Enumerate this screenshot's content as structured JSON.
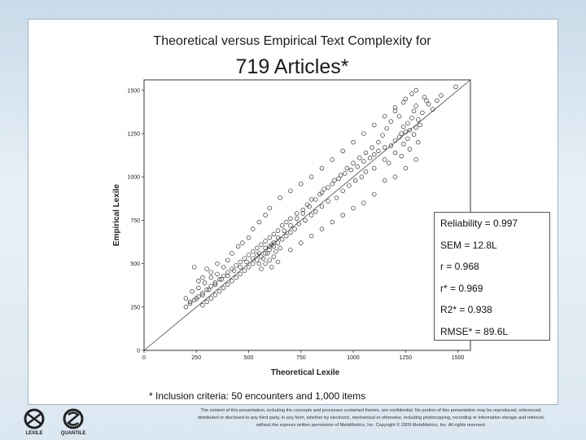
{
  "chart_data": {
    "type": "scatter",
    "title": "Theoretical versus Empirical Text Complexity for",
    "subtitle": "719 Articles*",
    "xlabel": "Theoretical Lexile",
    "ylabel": "Empirical Lexile",
    "xlim": [
      0,
      1560
    ],
    "ylim": [
      0,
      1560
    ],
    "xticks": [
      "0",
      "250",
      "500",
      "750",
      "1000",
      "1250",
      "1500"
    ],
    "yticks": [
      "0",
      "250",
      "500",
      "750",
      "1000",
      "1250",
      "1500"
    ],
    "reference_line": "y = x",
    "grid": false,
    "points": [
      [
        1490,
        1520
      ],
      [
        1350,
        1440
      ],
      [
        1300,
        1410
      ],
      [
        1290,
        1380
      ],
      [
        1330,
        1370
      ],
      [
        1280,
        1340
      ],
      [
        1310,
        1330
      ],
      [
        1260,
        1310
      ],
      [
        1320,
        1300
      ],
      [
        1240,
        1290
      ],
      [
        1300,
        1285
      ],
      [
        1270,
        1270
      ],
      [
        1250,
        1260
      ],
      [
        1230,
        1250
      ],
      [
        1290,
        1245
      ],
      [
        1220,
        1230
      ],
      [
        1260,
        1220
      ],
      [
        1200,
        1210
      ],
      [
        1310,
        1200
      ],
      [
        1240,
        1190
      ],
      [
        1180,
        1180
      ],
      [
        1150,
        1170
      ],
      [
        1270,
        1160
      ],
      [
        1120,
        1150
      ],
      [
        1200,
        1140
      ],
      [
        1100,
        1130
      ],
      [
        1230,
        1120
      ],
      [
        1080,
        1110
      ],
      [
        1150,
        1100
      ],
      [
        1050,
        1090
      ],
      [
        1170,
        1080
      ],
      [
        1020,
        1060
      ],
      [
        1100,
        1050
      ],
      [
        990,
        1040
      ],
      [
        1060,
        1030
      ],
      [
        960,
        1020
      ],
      [
        1040,
        1000
      ],
      [
        930,
        990
      ],
      [
        1010,
        980
      ],
      [
        900,
        960
      ],
      [
        980,
        950
      ],
      [
        860,
        930
      ],
      [
        950,
        920
      ],
      [
        840,
        900
      ],
      [
        920,
        880
      ],
      [
        800,
        870
      ],
      [
        880,
        860
      ],
      [
        780,
        840
      ],
      [
        850,
        830
      ],
      [
        760,
        810
      ],
      [
        820,
        800
      ],
      [
        730,
        790
      ],
      [
        800,
        780
      ],
      [
        700,
        760
      ],
      [
        770,
        750
      ],
      [
        680,
        740
      ],
      [
        740,
        730
      ],
      [
        660,
        720
      ],
      [
        720,
        700
      ],
      [
        640,
        690
      ],
      [
        700,
        680
      ],
      [
        620,
        670
      ],
      [
        680,
        660
      ],
      [
        600,
        650
      ],
      [
        660,
        640
      ],
      [
        580,
        630
      ],
      [
        640,
        620
      ],
      [
        560,
        610
      ],
      [
        620,
        600
      ],
      [
        540,
        590
      ],
      [
        600,
        580
      ],
      [
        520,
        570
      ],
      [
        580,
        560
      ],
      [
        500,
        550
      ],
      [
        560,
        540
      ],
      [
        480,
        530
      ],
      [
        540,
        520
      ],
      [
        460,
        510
      ],
      [
        520,
        500
      ],
      [
        440,
        490
      ],
      [
        500,
        480
      ],
      [
        420,
        470
      ],
      [
        480,
        460
      ],
      [
        400,
        450
      ],
      [
        460,
        440
      ],
      [
        380,
        430
      ],
      [
        440,
        420
      ],
      [
        360,
        410
      ],
      [
        420,
        400
      ],
      [
        340,
        390
      ],
      [
        400,
        380
      ],
      [
        320,
        370
      ],
      [
        380,
        360
      ],
      [
        300,
        350
      ],
      [
        360,
        340
      ],
      [
        280,
        330
      ],
      [
        340,
        320
      ],
      [
        260,
        310
      ],
      [
        320,
        300
      ],
      [
        240,
        290
      ],
      [
        300,
        280
      ],
      [
        220,
        270
      ],
      [
        280,
        260
      ],
      [
        200,
        250
      ],
      [
        600,
        520
      ],
      [
        580,
        500
      ],
      [
        560,
        470
      ],
      [
        620,
        540
      ],
      [
        640,
        510
      ],
      [
        590,
        560
      ],
      [
        610,
        480
      ],
      [
        570,
        530
      ],
      [
        630,
        570
      ],
      [
        550,
        500
      ],
      [
        600,
        600
      ],
      [
        620,
        620
      ],
      [
        650,
        590
      ],
      [
        540,
        550
      ],
      [
        300,
        470
      ],
      [
        320,
        450
      ],
      [
        280,
        420
      ],
      [
        260,
        400
      ],
      [
        240,
        480
      ],
      [
        350,
        500
      ],
      [
        380,
        480
      ],
      [
        400,
        520
      ],
      [
        420,
        560
      ],
      [
        450,
        600
      ],
      [
        470,
        620
      ],
      [
        500,
        650
      ],
      [
        520,
        700
      ],
      [
        550,
        740
      ],
      [
        580,
        780
      ],
      [
        600,
        820
      ],
      [
        650,
        880
      ],
      [
        700,
        920
      ],
      [
        750,
        960
      ],
      [
        800,
        1000
      ],
      [
        850,
        1050
      ],
      [
        900,
        1100
      ],
      [
        950,
        1150
      ],
      [
        1000,
        1200
      ],
      [
        1050,
        1250
      ],
      [
        1100,
        1300
      ],
      [
        1150,
        1350
      ],
      [
        1200,
        1400
      ],
      [
        1250,
        1450
      ],
      [
        1100,
        900
      ],
      [
        1050,
        850
      ],
      [
        1000,
        820
      ],
      [
        950,
        780
      ],
      [
        900,
        740
      ],
      [
        850,
        700
      ],
      [
        800,
        660
      ],
      [
        750,
        620
      ],
      [
        700,
        580
      ],
      [
        1300,
        1100
      ],
      [
        1250,
        1050
      ],
      [
        1200,
        1000
      ],
      [
        1150,
        980
      ],
      [
        1220,
        1350
      ],
      [
        1280,
        1480
      ],
      [
        1340,
        1460
      ],
      [
        1360,
        1420
      ],
      [
        1380,
        1390
      ],
      [
        1400,
        1440
      ],
      [
        1420,
        1470
      ],
      [
        1300,
        1500
      ],
      [
        1240,
        1430
      ],
      [
        1200,
        1380
      ],
      [
        1180,
        1320
      ],
      [
        1160,
        1280
      ],
      [
        1140,
        1240
      ],
      [
        1120,
        1200
      ],
      [
        1090,
        1170
      ],
      [
        1060,
        1140
      ],
      [
        1030,
        1110
      ],
      [
        1000,
        1080
      ],
      [
        970,
        1050
      ],
      [
        940,
        1010
      ],
      [
        910,
        980
      ],
      [
        880,
        940
      ],
      [
        850,
        910
      ],
      [
        820,
        870
      ],
      [
        790,
        830
      ],
      [
        760,
        790
      ],
      [
        730,
        760
      ],
      [
        700,
        720
      ],
      [
        670,
        690
      ],
      [
        640,
        650
      ],
      [
        610,
        610
      ],
      [
        580,
        590
      ],
      [
        550,
        560
      ],
      [
        520,
        530
      ],
      [
        490,
        510
      ],
      [
        460,
        480
      ],
      [
        430,
        460
      ],
      [
        400,
        430
      ],
      [
        370,
        410
      ],
      [
        340,
        380
      ],
      [
        310,
        350
      ],
      [
        280,
        320
      ],
      [
        250,
        300
      ],
      [
        220,
        280
      ],
      [
        200,
        300
      ],
      [
        230,
        340
      ],
      [
        260,
        360
      ],
      [
        290,
        390
      ],
      [
        320,
        420
      ],
      [
        350,
        440
      ]
    ]
  },
  "stats": {
    "reliability": "Reliability = 0.997",
    "sem": "SEM = 12.8L",
    "r": "r  =  0.968",
    "r_star": "r* = 0.969",
    "r2": "R2* = 0.938",
    "rmse": "RMSE* = 89.6L"
  },
  "footnote": "* Inclusion criteria: 50 encounters and 1,000 items",
  "logos": [
    "LEXILE",
    "QUANTILE"
  ],
  "copyright": "The content of this presentation, including the concepts and processes contained therein, are confidential. No portion of this presentation may be reproduced, referenced, distributed or disclosed to any third party, in any form, whether by electronic, mechanical or otherwise, including photocopying, recording or information storage and retrieval, without the express written permission of MetaMetrics, Inc. Copyright © 2009 MetaMetrics, Inc. All rights reserved."
}
